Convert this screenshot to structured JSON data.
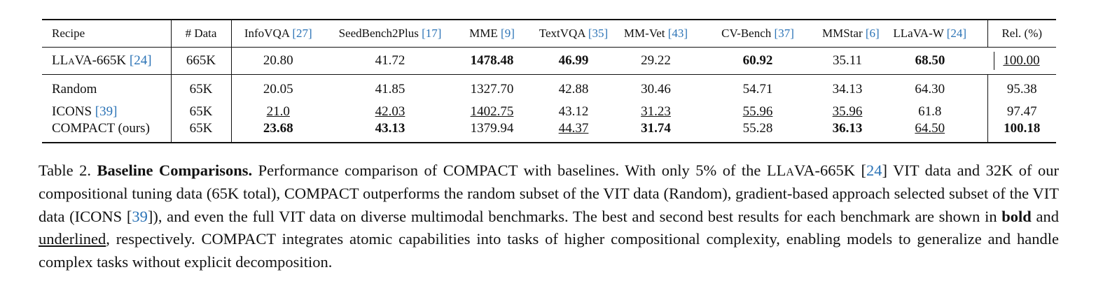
{
  "table": {
    "header": [
      {
        "name": "Recipe"
      },
      {
        "name": "# Data"
      },
      {
        "name": "InfoVQA",
        "cite": "27"
      },
      {
        "name": "SeedBench2Plus",
        "cite": "17"
      },
      {
        "name": "MME",
        "cite": "9"
      },
      {
        "name": "TextVQA",
        "cite": "35"
      },
      {
        "name": "MM-Vet",
        "cite": "43"
      },
      {
        "name": "CV-Bench",
        "cite": "37"
      },
      {
        "name": "MMStar",
        "cite": "6"
      },
      {
        "name": "LLaVA-W",
        "cite": "24"
      },
      {
        "name": "Rel. (%)"
      }
    ],
    "rows": [
      {
        "name": "LLaVA-665K",
        "cite": "24",
        "cells": [
          "665K",
          "20.80",
          "41.72",
          "1478.48",
          "46.99",
          "29.22",
          "60.92",
          "35.11",
          "68.50",
          "100.00"
        ]
      },
      {
        "name": "Random",
        "cells": [
          "65K",
          "20.05",
          "41.85",
          "1327.70",
          "42.88",
          "30.46",
          "54.71",
          "34.13",
          "64.30",
          "95.38"
        ]
      },
      {
        "name": "ICONS",
        "cite": "39",
        "cells": [
          "65K",
          "21.0",
          "42.03",
          "1402.75",
          "43.12",
          "31.23",
          "55.96",
          "35.96",
          "61.8",
          "97.47"
        ]
      },
      {
        "name": "COMPACT (ours)",
        "cells": [
          "65K",
          "23.68",
          "43.13",
          "1379.94",
          "44.37",
          "31.74",
          "55.28",
          "36.13",
          "64.50",
          "100.18"
        ]
      }
    ]
  },
  "caption": {
    "segments": [
      "Table 2.",
      "Baseline Comparisons.",
      "Performance comparison of COMPACT with baselines.  With only 5% of the",
      "LLaVA-665K",
      "[",
      "24",
      "] VIT data and 32K of our compositional tuning data (65K total), COMPACT outperforms the random subset of the VIT data (Random), gradient-based approach selected subset of the VIT data (ICONS [",
      "39",
      "]), and even the full VIT data on diverse multimodal benchmarks.  The best and second best results for each benchmark are shown in",
      "bold",
      "and",
      "underlined",
      ", respectively.  COMPACT integrates atomic capabilities into tasks of higher compositional complexity, enabling models to generalize and handle complex tasks without explicit decomposition."
    ]
  }
}
